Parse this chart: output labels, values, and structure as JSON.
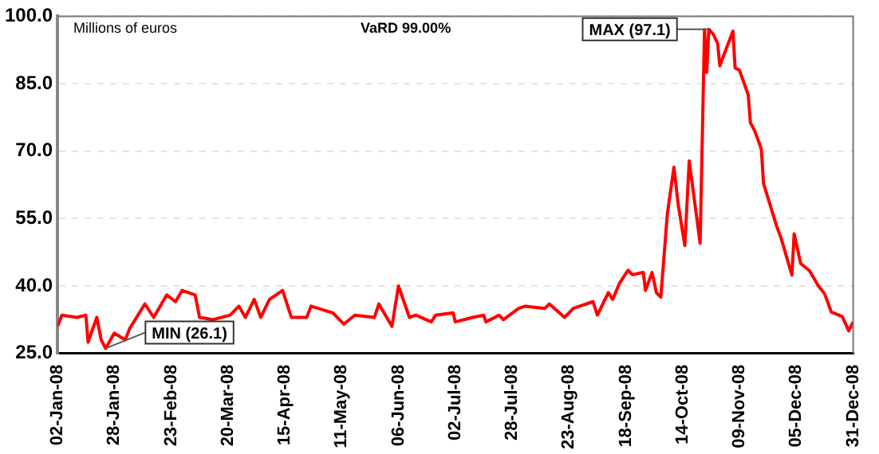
{
  "chart_data": {
    "type": "line",
    "x": [
      "2008-01-02",
      "2008-01-04",
      "2008-01-11",
      "2008-01-15",
      "2008-01-16",
      "2008-01-20",
      "2008-01-22",
      "2008-01-24",
      "2008-01-28",
      "2008-02-02",
      "2008-02-04",
      "2008-02-11",
      "2008-02-15",
      "2008-02-21",
      "2008-02-25",
      "2008-02-28",
      "2008-03-05",
      "2008-03-07",
      "2008-03-13",
      "2008-03-21",
      "2008-03-25",
      "2008-03-28",
      "2008-04-01",
      "2008-04-04",
      "2008-04-08",
      "2008-04-14",
      "2008-04-18",
      "2008-04-25",
      "2008-04-27",
      "2008-05-07",
      "2008-05-12",
      "2008-05-17",
      "2008-05-26",
      "2008-05-28",
      "2008-06-03",
      "2008-06-06",
      "2008-06-11",
      "2008-06-14",
      "2008-06-21",
      "2008-06-23",
      "2008-07-01",
      "2008-07-02",
      "2008-07-10",
      "2008-07-15",
      "2008-07-16",
      "2008-07-22",
      "2008-07-24",
      "2008-07-31",
      "2008-08-03",
      "2008-08-12",
      "2008-08-14",
      "2008-08-21",
      "2008-08-25",
      "2008-09-03",
      "2008-09-05",
      "2008-09-10",
      "2008-09-12",
      "2008-09-15",
      "2008-09-19",
      "2008-09-21",
      "2008-09-26",
      "2008-09-27",
      "2008-09-30",
      "2008-10-02",
      "2008-10-04",
      "2008-10-07",
      "2008-10-10",
      "2008-10-12",
      "2008-10-15",
      "2008-10-17",
      "2008-10-22",
      "2008-10-24",
      "2008-10-25",
      "2008-10-26",
      "2008-10-28",
      "2008-10-30",
      "2008-10-31",
      "2008-11-06",
      "2008-11-07",
      "2008-11-09",
      "2008-11-13",
      "2008-11-14",
      "2008-11-16",
      "2008-11-19",
      "2008-11-20",
      "2008-11-26",
      "2008-11-28",
      "2008-12-01",
      "2008-12-03",
      "2008-12-04",
      "2008-12-07",
      "2008-12-11",
      "2008-12-15",
      "2008-12-18",
      "2008-12-21",
      "2008-12-26",
      "2008-12-29",
      "2008-12-31"
    ],
    "series": [
      {
        "color": "#ff0000",
        "values": [
          31,
          33.5,
          33,
          33.5,
          27.5,
          33,
          28,
          26.1,
          29.5,
          28,
          30.5,
          36,
          33,
          38,
          36.5,
          39,
          38,
          33,
          32.5,
          33.5,
          35.5,
          33,
          37,
          33,
          37,
          39,
          33,
          33,
          35.5,
          34,
          31.5,
          33.5,
          33,
          36,
          31,
          40,
          33,
          33.5,
          32,
          33.5,
          34,
          32,
          33,
          33.5,
          32,
          33.5,
          32.5,
          35,
          35.5,
          35,
          36,
          33,
          35,
          36.5,
          33.5,
          38.5,
          37,
          40.5,
          43.5,
          42.5,
          43,
          39,
          43,
          38.5,
          37.5,
          56,
          66.4,
          58,
          49,
          67.8,
          49.5,
          97,
          87.5,
          97.1,
          96,
          94,
          89,
          96.7,
          88.5,
          88,
          82.5,
          76.3,
          74.5,
          70.4,
          62.8,
          53.3,
          50.7,
          45.7,
          42.4,
          51.6,
          45,
          43.4,
          40.1,
          38.2,
          34.2,
          33.2,
          30,
          32
        ]
      }
    ],
    "xlim": [
      "2008-01-02",
      "2008-12-31"
    ],
    "xticks": [
      {
        "value": "2008-01-02",
        "label": "02-Jan-08"
      },
      {
        "value": "2008-01-28",
        "label": "28-Jan-08"
      },
      {
        "value": "2008-02-23",
        "label": "23-Feb-08"
      },
      {
        "value": "2008-03-20",
        "label": "20-Mar-08"
      },
      {
        "value": "2008-04-15",
        "label": "15-Apr-08"
      },
      {
        "value": "2008-05-11",
        "label": "11-May-08"
      },
      {
        "value": "2008-06-06",
        "label": "06-Jun-08"
      },
      {
        "value": "2008-07-02",
        "label": "02-Jul-08"
      },
      {
        "value": "2008-07-28",
        "label": "28-Jul-08"
      },
      {
        "value": "2008-08-23",
        "label": "23-Aug-08"
      },
      {
        "value": "2008-09-18",
        "label": "18-Sep-08"
      },
      {
        "value": "2008-10-14",
        "label": "14-Oct-08"
      },
      {
        "value": "2008-11-09",
        "label": "09-Nov-08"
      },
      {
        "value": "2008-12-05",
        "label": "05-Dec-08"
      },
      {
        "value": "2008-12-31",
        "label": "31-Dec-08"
      }
    ],
    "ylim": [
      25,
      100
    ],
    "yticks": [
      {
        "value": 25,
        "label": "25.0"
      },
      {
        "value": 40,
        "label": "40.0"
      },
      {
        "value": 55,
        "label": "55.0"
      },
      {
        "value": 70,
        "label": "70.0"
      },
      {
        "value": 85,
        "label": "85.0"
      },
      {
        "value": 100,
        "label": "100.0"
      }
    ],
    "grid": "y",
    "marker": "none",
    "line_style": "solid",
    "legend": false,
    "annotations": [
      "Millions of euros",
      "VaRD 99.00%",
      {
        "text": "MAX (97.1)",
        "x": "2008-10-26",
        "y": 97.1
      },
      {
        "text": "MIN (26.1)",
        "x": "2008-01-24",
        "y": 26.1
      }
    ]
  }
}
